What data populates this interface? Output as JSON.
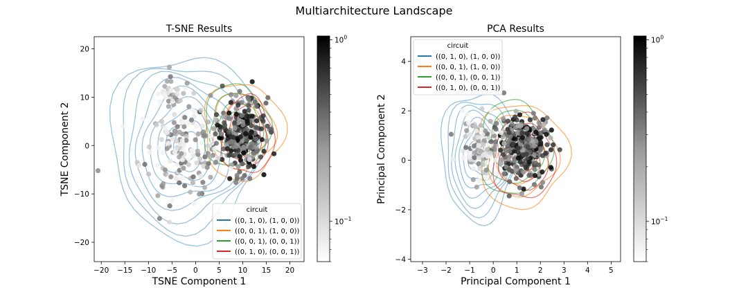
{
  "figure": {
    "title": "Multiarchitecture Landscape"
  },
  "chart_data": [
    {
      "type": "scatter",
      "title": "T-SNE Results",
      "xlabel": "TSNE Component 1",
      "ylabel": "TSNE Component 2",
      "xlim": [
        -21.5,
        23
      ],
      "ylim": [
        -24,
        22.5
      ],
      "xticks": [
        -20,
        -15,
        -10,
        -5,
        0,
        5,
        10,
        15,
        20
      ],
      "yticks": [
        -20,
        -10,
        0,
        10,
        20
      ],
      "grid": false,
      "legend": {
        "title": "circuit",
        "placement": "lower-right",
        "entries": [
          {
            "label": "((0, 1, 0), (1, 0, 0))",
            "color": "#1f77b4"
          },
          {
            "label": "((0, 0, 1), (1, 0, 0))",
            "color": "#ff7f0e"
          },
          {
            "label": "((0, 0, 1), (0, 0, 1))",
            "color": "#2ca02c"
          },
          {
            "label": "((0, 1, 0), (0, 0, 1))",
            "color": "#d62728"
          }
        ]
      },
      "clusters": [
        {
          "cx": 9.5,
          "cy": 2.5,
          "sx": 4.5,
          "sy": 7,
          "n": 260,
          "dark": 0.7
        },
        {
          "cx": -3,
          "cy": -1,
          "sx": 8,
          "sy": 9,
          "n": 170,
          "dark": 0.25
        },
        {
          "cx": -6,
          "cy": 11,
          "sx": 3,
          "sy": 3,
          "n": 40,
          "dark": 0.2
        }
      ],
      "density_contours": [
        {
          "series": "((0, 1, 0), (1, 0, 0))",
          "cx": -2,
          "cy": 0,
          "rx": 16,
          "ry": 19,
          "levels": 9
        },
        {
          "series": "((0, 0, 1), (1, 0, 0))",
          "cx": 10,
          "cy": 3,
          "rx": 8.5,
          "ry": 10,
          "levels": 4
        },
        {
          "series": "((0, 0, 1), (0, 0, 1))",
          "cx": 8.5,
          "cy": 4,
          "rx": 7,
          "ry": 8.5,
          "levels": 4
        },
        {
          "series": "((0, 1, 0), (0, 0, 1))",
          "cx": 11,
          "cy": 2,
          "rx": 5.5,
          "ry": 8,
          "levels": 4
        }
      ],
      "colorbar": {
        "scale": "log",
        "range": [
          0.06,
          1.05
        ],
        "tick_labels": [
          "10^0",
          "10^-1"
        ]
      }
    },
    {
      "type": "scatter",
      "title": "PCA Results",
      "xlabel": "Principal Component 1",
      "ylabel": "Principal Component 2",
      "xlim": [
        -3.5,
        5.4
      ],
      "ylim": [
        -4.1,
        5
      ],
      "xticks": [
        -3,
        -2,
        -1,
        0,
        1,
        2,
        3,
        4,
        5
      ],
      "yticks": [
        -4,
        -2,
        0,
        2,
        4
      ],
      "grid": false,
      "legend": {
        "title": "circuit",
        "placement": "upper-left",
        "entries": [
          {
            "label": "((0, 1, 0), (1, 0, 0))",
            "color": "#1f77b4"
          },
          {
            "label": "((0, 0, 1), (1, 0, 0))",
            "color": "#ff7f0e"
          },
          {
            "label": "((0, 0, 1), (0, 0, 1))",
            "color": "#2ca02c"
          },
          {
            "label": "((0, 1, 0), (0, 0, 1))",
            "color": "#d62728"
          }
        ]
      },
      "clusters": [
        {
          "cx": 1.3,
          "cy": 0.6,
          "sx": 1.0,
          "sy": 1.1,
          "n": 300,
          "dark": 0.65
        },
        {
          "cx": -0.5,
          "cy": 0.5,
          "sx": 0.7,
          "sy": 1.1,
          "n": 120,
          "dark": 0.25
        }
      ],
      "density_contours": [
        {
          "series": "((0, 1, 0), (1, 0, 0))",
          "cx": -0.6,
          "cy": 0.2,
          "rx": 1.6,
          "ry": 2.6,
          "levels": 8
        },
        {
          "series": "((0, 0, 1), (1, 0, 0))",
          "cx": 1.2,
          "cy": 0.2,
          "rx": 1.9,
          "ry": 2.1,
          "levels": 4
        },
        {
          "series": "((0, 0, 1), (0, 0, 1))",
          "cx": 0.9,
          "cy": 0.5,
          "rx": 1.5,
          "ry": 1.9,
          "levels": 4
        },
        {
          "series": "((0, 1, 0), (0, 0, 1))",
          "cx": 1.3,
          "cy": 0.1,
          "rx": 1.3,
          "ry": 1.7,
          "levels": 4
        }
      ],
      "colorbar": {
        "scale": "log",
        "range": [
          0.06,
          1.05
        ],
        "tick_labels": [
          "10^0",
          "10^-1"
        ]
      }
    }
  ]
}
